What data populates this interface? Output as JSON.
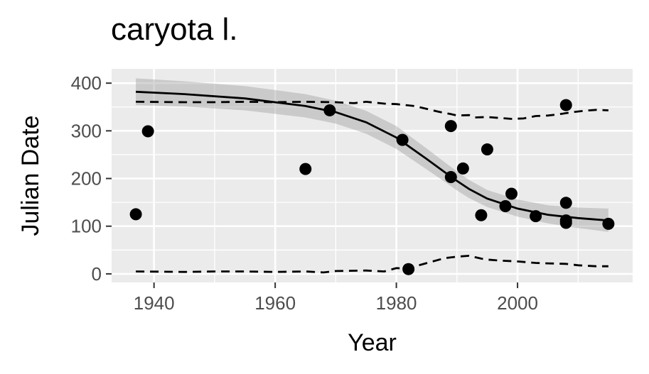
{
  "chart_data": {
    "type": "scatter",
    "title": "caryota l.",
    "xlabel": "Year",
    "ylabel": "Julian Date",
    "xlim": [
      1933,
      2019
    ],
    "ylim": [
      -18,
      430
    ],
    "x_ticks": [
      1940,
      1960,
      1980,
      2000
    ],
    "y_ticks": [
      0,
      100,
      200,
      300,
      400
    ],
    "grid": true,
    "legend": "none",
    "points": [
      {
        "x": 1937,
        "y": 125
      },
      {
        "x": 1939,
        "y": 299
      },
      {
        "x": 1965,
        "y": 220
      },
      {
        "x": 1969,
        "y": 343
      },
      {
        "x": 1981,
        "y": 281
      },
      {
        "x": 1982,
        "y": 10
      },
      {
        "x": 1989,
        "y": 310
      },
      {
        "x": 1989,
        "y": 203
      },
      {
        "x": 1991,
        "y": 221
      },
      {
        "x": 1994,
        "y": 123
      },
      {
        "x": 1995,
        "y": 261
      },
      {
        "x": 1998,
        "y": 142
      },
      {
        "x": 1999,
        "y": 168
      },
      {
        "x": 2003,
        "y": 121
      },
      {
        "x": 2008,
        "y": 354
      },
      {
        "x": 2008,
        "y": 149
      },
      {
        "x": 2008,
        "y": 112
      },
      {
        "x": 2008,
        "y": 107
      },
      {
        "x": 2015,
        "y": 105
      }
    ],
    "fit_line": {
      "x": [
        1937,
        1945,
        1955,
        1965,
        1970,
        1975,
        1980,
        1985,
        1988,
        1990,
        1992,
        1995,
        2000,
        2005,
        2010,
        2015
      ],
      "y": [
        382,
        377,
        368,
        352,
        339,
        318,
        286,
        241,
        213,
        195,
        178,
        158,
        137,
        124,
        117,
        112
      ]
    },
    "confidence_band": {
      "x": [
        1937,
        1945,
        1955,
        1965,
        1970,
        1975,
        1980,
        1985,
        1988,
        1990,
        1992,
        1995,
        2000,
        2005,
        2010,
        2015
      ],
      "upper": [
        410,
        404,
        394,
        377,
        363,
        342,
        310,
        263,
        234,
        215,
        197,
        176,
        156,
        144,
        139,
        137
      ],
      "lower": [
        354,
        351,
        343,
        328,
        315,
        294,
        262,
        219,
        193,
        175,
        159,
        140,
        120,
        106,
        96,
        88
      ]
    },
    "upper_bound_dashed": {
      "x": [
        1937,
        1945,
        1950,
        1955,
        1960,
        1965,
        1970,
        1973,
        1975,
        1978,
        1980,
        1983,
        1985,
        1987,
        1989,
        1990,
        1992,
        1993,
        1995,
        1997,
        1999,
        2001,
        2003,
        2005,
        2007,
        2009,
        2011,
        2013,
        2015
      ],
      "y": [
        361,
        360,
        360,
        361,
        360,
        361,
        360,
        358,
        361,
        357,
        356,
        352,
        346,
        340,
        335,
        332,
        333,
        328,
        329,
        327,
        325,
        326,
        331,
        332,
        335,
        339,
        342,
        344,
        343
      ]
    },
    "lower_bound_dashed": {
      "x": [
        1937,
        1945,
        1950,
        1955,
        1960,
        1965,
        1968,
        1970,
        1975,
        1978,
        1980,
        1982,
        1984,
        1986,
        1988,
        1990,
        1992,
        1994,
        1995,
        1997,
        2000,
        2003,
        2005,
        2008,
        2010,
        2013,
        2015
      ],
      "y": [
        5,
        4,
        5,
        5,
        4,
        5,
        3,
        6,
        7,
        5,
        12,
        11,
        19,
        26,
        33,
        36,
        38,
        32,
        30,
        28,
        26,
        23,
        22,
        21,
        18,
        16,
        16
      ]
    }
  }
}
